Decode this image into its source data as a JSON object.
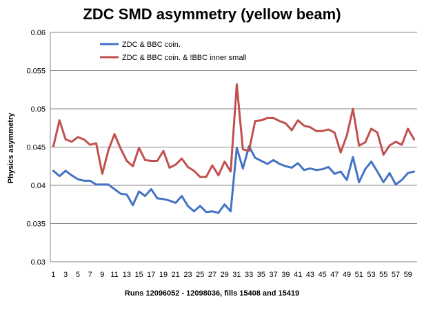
{
  "chart_data": {
    "type": "line",
    "title": "ZDC SMD asymmetry (yellow beam)",
    "xlabel": "Runs 12096052 - 12098036, fills 15408 and 15419",
    "ylabel": "Physics asymmetry",
    "ylim": [
      0.03,
      0.06
    ],
    "yticks": [
      "0.03",
      "0.035",
      "0.04",
      "0.045",
      "0.05",
      "0.055",
      "0.06"
    ],
    "x": [
      1,
      2,
      3,
      4,
      5,
      6,
      7,
      8,
      9,
      10,
      11,
      12,
      13,
      14,
      15,
      16,
      17,
      18,
      19,
      20,
      21,
      22,
      23,
      24,
      25,
      26,
      27,
      28,
      29,
      30,
      31,
      32,
      33,
      34,
      35,
      36,
      37,
      38,
      39,
      40,
      41,
      42,
      43,
      44,
      45,
      46,
      47,
      48,
      49,
      50,
      51,
      52,
      53,
      54,
      55,
      56,
      57,
      58,
      59,
      60
    ],
    "xtick_labels": [
      "1",
      "3",
      "5",
      "7",
      "9",
      "11",
      "13",
      "15",
      "17",
      "19",
      "21",
      "23",
      "25",
      "27",
      "29",
      "31",
      "33",
      "35",
      "37",
      "39",
      "41",
      "43",
      "45",
      "47",
      "49",
      "51",
      "53",
      "55",
      "57",
      "59"
    ],
    "grid": "horizontal",
    "legend_position": "top",
    "series": [
      {
        "name": "ZDC & BBC coin.",
        "color": "#4472c4",
        "values": [
          0.0419,
          0.0412,
          0.0419,
          0.0413,
          0.0408,
          0.0406,
          0.0406,
          0.0401,
          0.0401,
          0.0401,
          0.0395,
          0.0389,
          0.0388,
          0.0374,
          0.0392,
          0.0386,
          0.0395,
          0.0383,
          0.0382,
          0.038,
          0.0377,
          0.0386,
          0.0373,
          0.0366,
          0.0373,
          0.0365,
          0.0366,
          0.0364,
          0.0375,
          0.0366,
          0.0449,
          0.0422,
          0.0451,
          0.0436,
          0.0432,
          0.0428,
          0.0433,
          0.0428,
          0.0425,
          0.0423,
          0.0429,
          0.042,
          0.0422,
          0.042,
          0.0421,
          0.0424,
          0.0415,
          0.0418,
          0.0407,
          0.0437,
          0.0404,
          0.0421,
          0.0431,
          0.0418,
          0.0404,
          0.0416,
          0.0401,
          0.0407,
          0.0416,
          0.0418
        ]
      },
      {
        "name": "ZDC & BBC coin. & !BBC inner small",
        "color": "#c0504d",
        "values": [
          0.0451,
          0.0485,
          0.046,
          0.0457,
          0.0463,
          0.046,
          0.0453,
          0.0455,
          0.0415,
          0.0446,
          0.0467,
          0.0448,
          0.0432,
          0.0425,
          0.0449,
          0.0433,
          0.0432,
          0.0432,
          0.0445,
          0.0423,
          0.0427,
          0.0435,
          0.0424,
          0.0419,
          0.0411,
          0.0411,
          0.0426,
          0.0413,
          0.0431,
          0.0418,
          0.0532,
          0.0447,
          0.0445,
          0.0484,
          0.0485,
          0.0488,
          0.0488,
          0.0484,
          0.0481,
          0.0472,
          0.0485,
          0.0478,
          0.0476,
          0.0471,
          0.0471,
          0.0473,
          0.0469,
          0.0443,
          0.0465,
          0.05,
          0.0452,
          0.0456,
          0.0474,
          0.0469,
          0.044,
          0.0452,
          0.0457,
          0.0453,
          0.0474,
          0.046
        ]
      }
    ]
  }
}
